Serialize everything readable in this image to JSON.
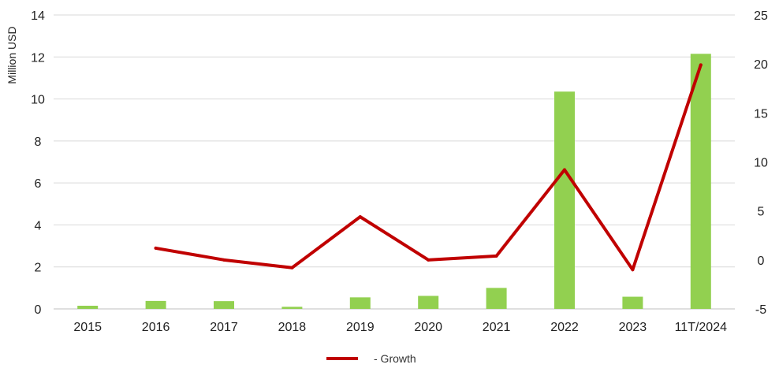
{
  "chart_data": {
    "type": "bar",
    "title": "",
    "xlabel": "",
    "ylabel": "Million USD",
    "ylim": [
      0,
      14
    ],
    "y2lim": [
      -5,
      25
    ],
    "yticks": [
      0,
      2,
      4,
      6,
      8,
      10,
      12,
      14
    ],
    "y2ticks": [
      -5,
      0,
      5,
      10,
      15,
      20,
      25
    ],
    "grid": true,
    "legend_position": "bottom-center",
    "categories": [
      "2015",
      "2016",
      "2017",
      "2018",
      "2019",
      "2020",
      "2021",
      "2022",
      "2023",
      "11T/2024"
    ],
    "series": [
      {
        "kind": "bar",
        "axis": "left",
        "color": "#92d050",
        "values": [
          0.15,
          0.38,
          0.37,
          0.1,
          0.55,
          0.62,
          1.0,
          10.35,
          0.58,
          12.15
        ]
      },
      {
        "kind": "line",
        "axis": "right",
        "name": "- Growth",
        "color": "#c00000",
        "values": [
          null,
          1.2,
          0.0,
          -0.8,
          4.4,
          0.0,
          0.4,
          9.2,
          -1.0,
          19.9
        ]
      }
    ]
  }
}
